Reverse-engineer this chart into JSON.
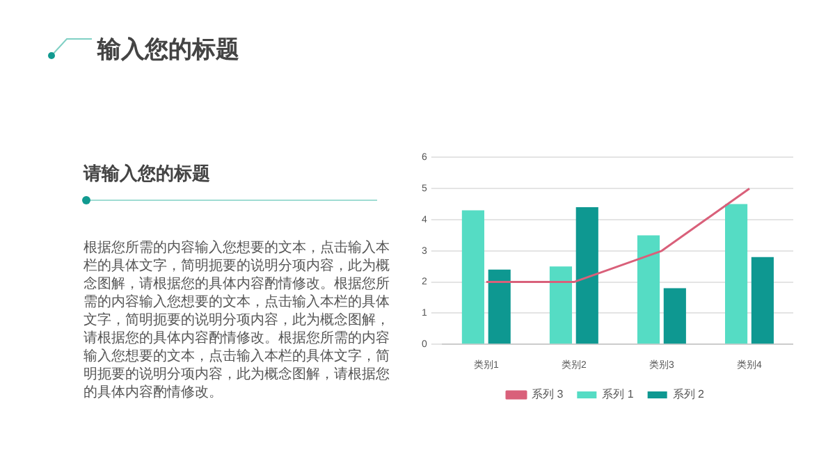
{
  "chart_data": {
    "type": "bar",
    "title": "输入您的标题",
    "subtitle": "请输入您的标题",
    "annotations": [
      "根据您所需的内容输入您想要的文本，点击输入本栏的具体文字，简明扼要的说明分项内容，此为概念图解，请根据您的具体内容酌情修改。根据您所需的内容输入您想要的文本，点击输入本栏的具体文字，简明扼要的说明分项内容，此为概念图解，请根据您的具体内容酌情修改。根据您所需的内容输入您想要的文本，点击输入本栏的具体文字，简明扼要的说明分项内容，此为概念图解，请根据您的具体内容酌情修改。"
    ],
    "categories": [
      "类别1",
      "类别2",
      "类别3",
      "类别4"
    ],
    "series": [
      {
        "name": "系列 1",
        "color": "#55dcc4",
        "values": [
          4.3,
          2.5,
          3.5,
          4.5
        ]
      },
      {
        "name": "系列 2",
        "color": "#0e9891",
        "values": [
          2.4,
          4.4,
          1.8,
          2.8
        ]
      },
      {
        "name": "系列 3",
        "type": "line",
        "color": "#d9607a",
        "values": [
          2,
          2,
          3,
          5
        ]
      }
    ],
    "ylim": [
      0,
      6
    ],
    "yticks": [
      0,
      1,
      2,
      3,
      4,
      5,
      6
    ],
    "grid": "y",
    "legend": "bottom",
    "marker": "none"
  }
}
